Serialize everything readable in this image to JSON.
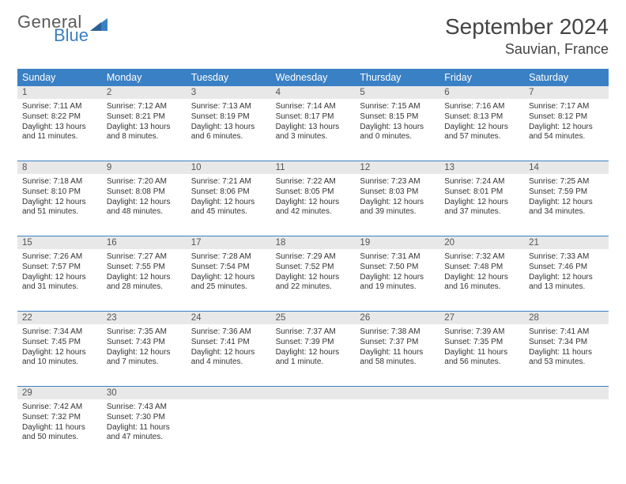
{
  "brand": {
    "line1": "General",
    "line2": "Blue"
  },
  "month_title": "September 2024",
  "location": "Sauvian, France",
  "colors": {
    "header_bg": "#3a80c4",
    "header_text": "#ffffff",
    "daynum_bg": "#e8e8e8",
    "daynum_text": "#555555",
    "body_text": "#333333",
    "row_divider": "#3a80c4",
    "background": "#ffffff"
  },
  "typography": {
    "title_fontsize": 28,
    "location_fontsize": 18,
    "dayheader_fontsize": 12.5,
    "daynum_fontsize": 11.5,
    "cell_fontsize": 10
  },
  "day_names": [
    "Sunday",
    "Monday",
    "Tuesday",
    "Wednesday",
    "Thursday",
    "Friday",
    "Saturday"
  ],
  "weeks": [
    {
      "nums": [
        "1",
        "2",
        "3",
        "4",
        "5",
        "6",
        "7"
      ],
      "cells": [
        {
          "sunrise": "Sunrise: 7:11 AM",
          "sunset": "Sunset: 8:22 PM",
          "day1": "Daylight: 13 hours",
          "day2": "and 11 minutes."
        },
        {
          "sunrise": "Sunrise: 7:12 AM",
          "sunset": "Sunset: 8:21 PM",
          "day1": "Daylight: 13 hours",
          "day2": "and 8 minutes."
        },
        {
          "sunrise": "Sunrise: 7:13 AM",
          "sunset": "Sunset: 8:19 PM",
          "day1": "Daylight: 13 hours",
          "day2": "and 6 minutes."
        },
        {
          "sunrise": "Sunrise: 7:14 AM",
          "sunset": "Sunset: 8:17 PM",
          "day1": "Daylight: 13 hours",
          "day2": "and 3 minutes."
        },
        {
          "sunrise": "Sunrise: 7:15 AM",
          "sunset": "Sunset: 8:15 PM",
          "day1": "Daylight: 13 hours",
          "day2": "and 0 minutes."
        },
        {
          "sunrise": "Sunrise: 7:16 AM",
          "sunset": "Sunset: 8:13 PM",
          "day1": "Daylight: 12 hours",
          "day2": "and 57 minutes."
        },
        {
          "sunrise": "Sunrise: 7:17 AM",
          "sunset": "Sunset: 8:12 PM",
          "day1": "Daylight: 12 hours",
          "day2": "and 54 minutes."
        }
      ]
    },
    {
      "nums": [
        "8",
        "9",
        "10",
        "11",
        "12",
        "13",
        "14"
      ],
      "cells": [
        {
          "sunrise": "Sunrise: 7:18 AM",
          "sunset": "Sunset: 8:10 PM",
          "day1": "Daylight: 12 hours",
          "day2": "and 51 minutes."
        },
        {
          "sunrise": "Sunrise: 7:20 AM",
          "sunset": "Sunset: 8:08 PM",
          "day1": "Daylight: 12 hours",
          "day2": "and 48 minutes."
        },
        {
          "sunrise": "Sunrise: 7:21 AM",
          "sunset": "Sunset: 8:06 PM",
          "day1": "Daylight: 12 hours",
          "day2": "and 45 minutes."
        },
        {
          "sunrise": "Sunrise: 7:22 AM",
          "sunset": "Sunset: 8:05 PM",
          "day1": "Daylight: 12 hours",
          "day2": "and 42 minutes."
        },
        {
          "sunrise": "Sunrise: 7:23 AM",
          "sunset": "Sunset: 8:03 PM",
          "day1": "Daylight: 12 hours",
          "day2": "and 39 minutes."
        },
        {
          "sunrise": "Sunrise: 7:24 AM",
          "sunset": "Sunset: 8:01 PM",
          "day1": "Daylight: 12 hours",
          "day2": "and 37 minutes."
        },
        {
          "sunrise": "Sunrise: 7:25 AM",
          "sunset": "Sunset: 7:59 PM",
          "day1": "Daylight: 12 hours",
          "day2": "and 34 minutes."
        }
      ]
    },
    {
      "nums": [
        "15",
        "16",
        "17",
        "18",
        "19",
        "20",
        "21"
      ],
      "cells": [
        {
          "sunrise": "Sunrise: 7:26 AM",
          "sunset": "Sunset: 7:57 PM",
          "day1": "Daylight: 12 hours",
          "day2": "and 31 minutes."
        },
        {
          "sunrise": "Sunrise: 7:27 AM",
          "sunset": "Sunset: 7:55 PM",
          "day1": "Daylight: 12 hours",
          "day2": "and 28 minutes."
        },
        {
          "sunrise": "Sunrise: 7:28 AM",
          "sunset": "Sunset: 7:54 PM",
          "day1": "Daylight: 12 hours",
          "day2": "and 25 minutes."
        },
        {
          "sunrise": "Sunrise: 7:29 AM",
          "sunset": "Sunset: 7:52 PM",
          "day1": "Daylight: 12 hours",
          "day2": "and 22 minutes."
        },
        {
          "sunrise": "Sunrise: 7:31 AM",
          "sunset": "Sunset: 7:50 PM",
          "day1": "Daylight: 12 hours",
          "day2": "and 19 minutes."
        },
        {
          "sunrise": "Sunrise: 7:32 AM",
          "sunset": "Sunset: 7:48 PM",
          "day1": "Daylight: 12 hours",
          "day2": "and 16 minutes."
        },
        {
          "sunrise": "Sunrise: 7:33 AM",
          "sunset": "Sunset: 7:46 PM",
          "day1": "Daylight: 12 hours",
          "day2": "and 13 minutes."
        }
      ]
    },
    {
      "nums": [
        "22",
        "23",
        "24",
        "25",
        "26",
        "27",
        "28"
      ],
      "cells": [
        {
          "sunrise": "Sunrise: 7:34 AM",
          "sunset": "Sunset: 7:45 PM",
          "day1": "Daylight: 12 hours",
          "day2": "and 10 minutes."
        },
        {
          "sunrise": "Sunrise: 7:35 AM",
          "sunset": "Sunset: 7:43 PM",
          "day1": "Daylight: 12 hours",
          "day2": "and 7 minutes."
        },
        {
          "sunrise": "Sunrise: 7:36 AM",
          "sunset": "Sunset: 7:41 PM",
          "day1": "Daylight: 12 hours",
          "day2": "and 4 minutes."
        },
        {
          "sunrise": "Sunrise: 7:37 AM",
          "sunset": "Sunset: 7:39 PM",
          "day1": "Daylight: 12 hours",
          "day2": "and 1 minute."
        },
        {
          "sunrise": "Sunrise: 7:38 AM",
          "sunset": "Sunset: 7:37 PM",
          "day1": "Daylight: 11 hours",
          "day2": "and 58 minutes."
        },
        {
          "sunrise": "Sunrise: 7:39 AM",
          "sunset": "Sunset: 7:35 PM",
          "day1": "Daylight: 11 hours",
          "day2": "and 56 minutes."
        },
        {
          "sunrise": "Sunrise: 7:41 AM",
          "sunset": "Sunset: 7:34 PM",
          "day1": "Daylight: 11 hours",
          "day2": "and 53 minutes."
        }
      ]
    },
    {
      "nums": [
        "29",
        "30",
        "",
        "",
        "",
        "",
        ""
      ],
      "cells": [
        {
          "sunrise": "Sunrise: 7:42 AM",
          "sunset": "Sunset: 7:32 PM",
          "day1": "Daylight: 11 hours",
          "day2": "and 50 minutes."
        },
        {
          "sunrise": "Sunrise: 7:43 AM",
          "sunset": "Sunset: 7:30 PM",
          "day1": "Daylight: 11 hours",
          "day2": "and 47 minutes."
        },
        null,
        null,
        null,
        null,
        null
      ]
    }
  ]
}
